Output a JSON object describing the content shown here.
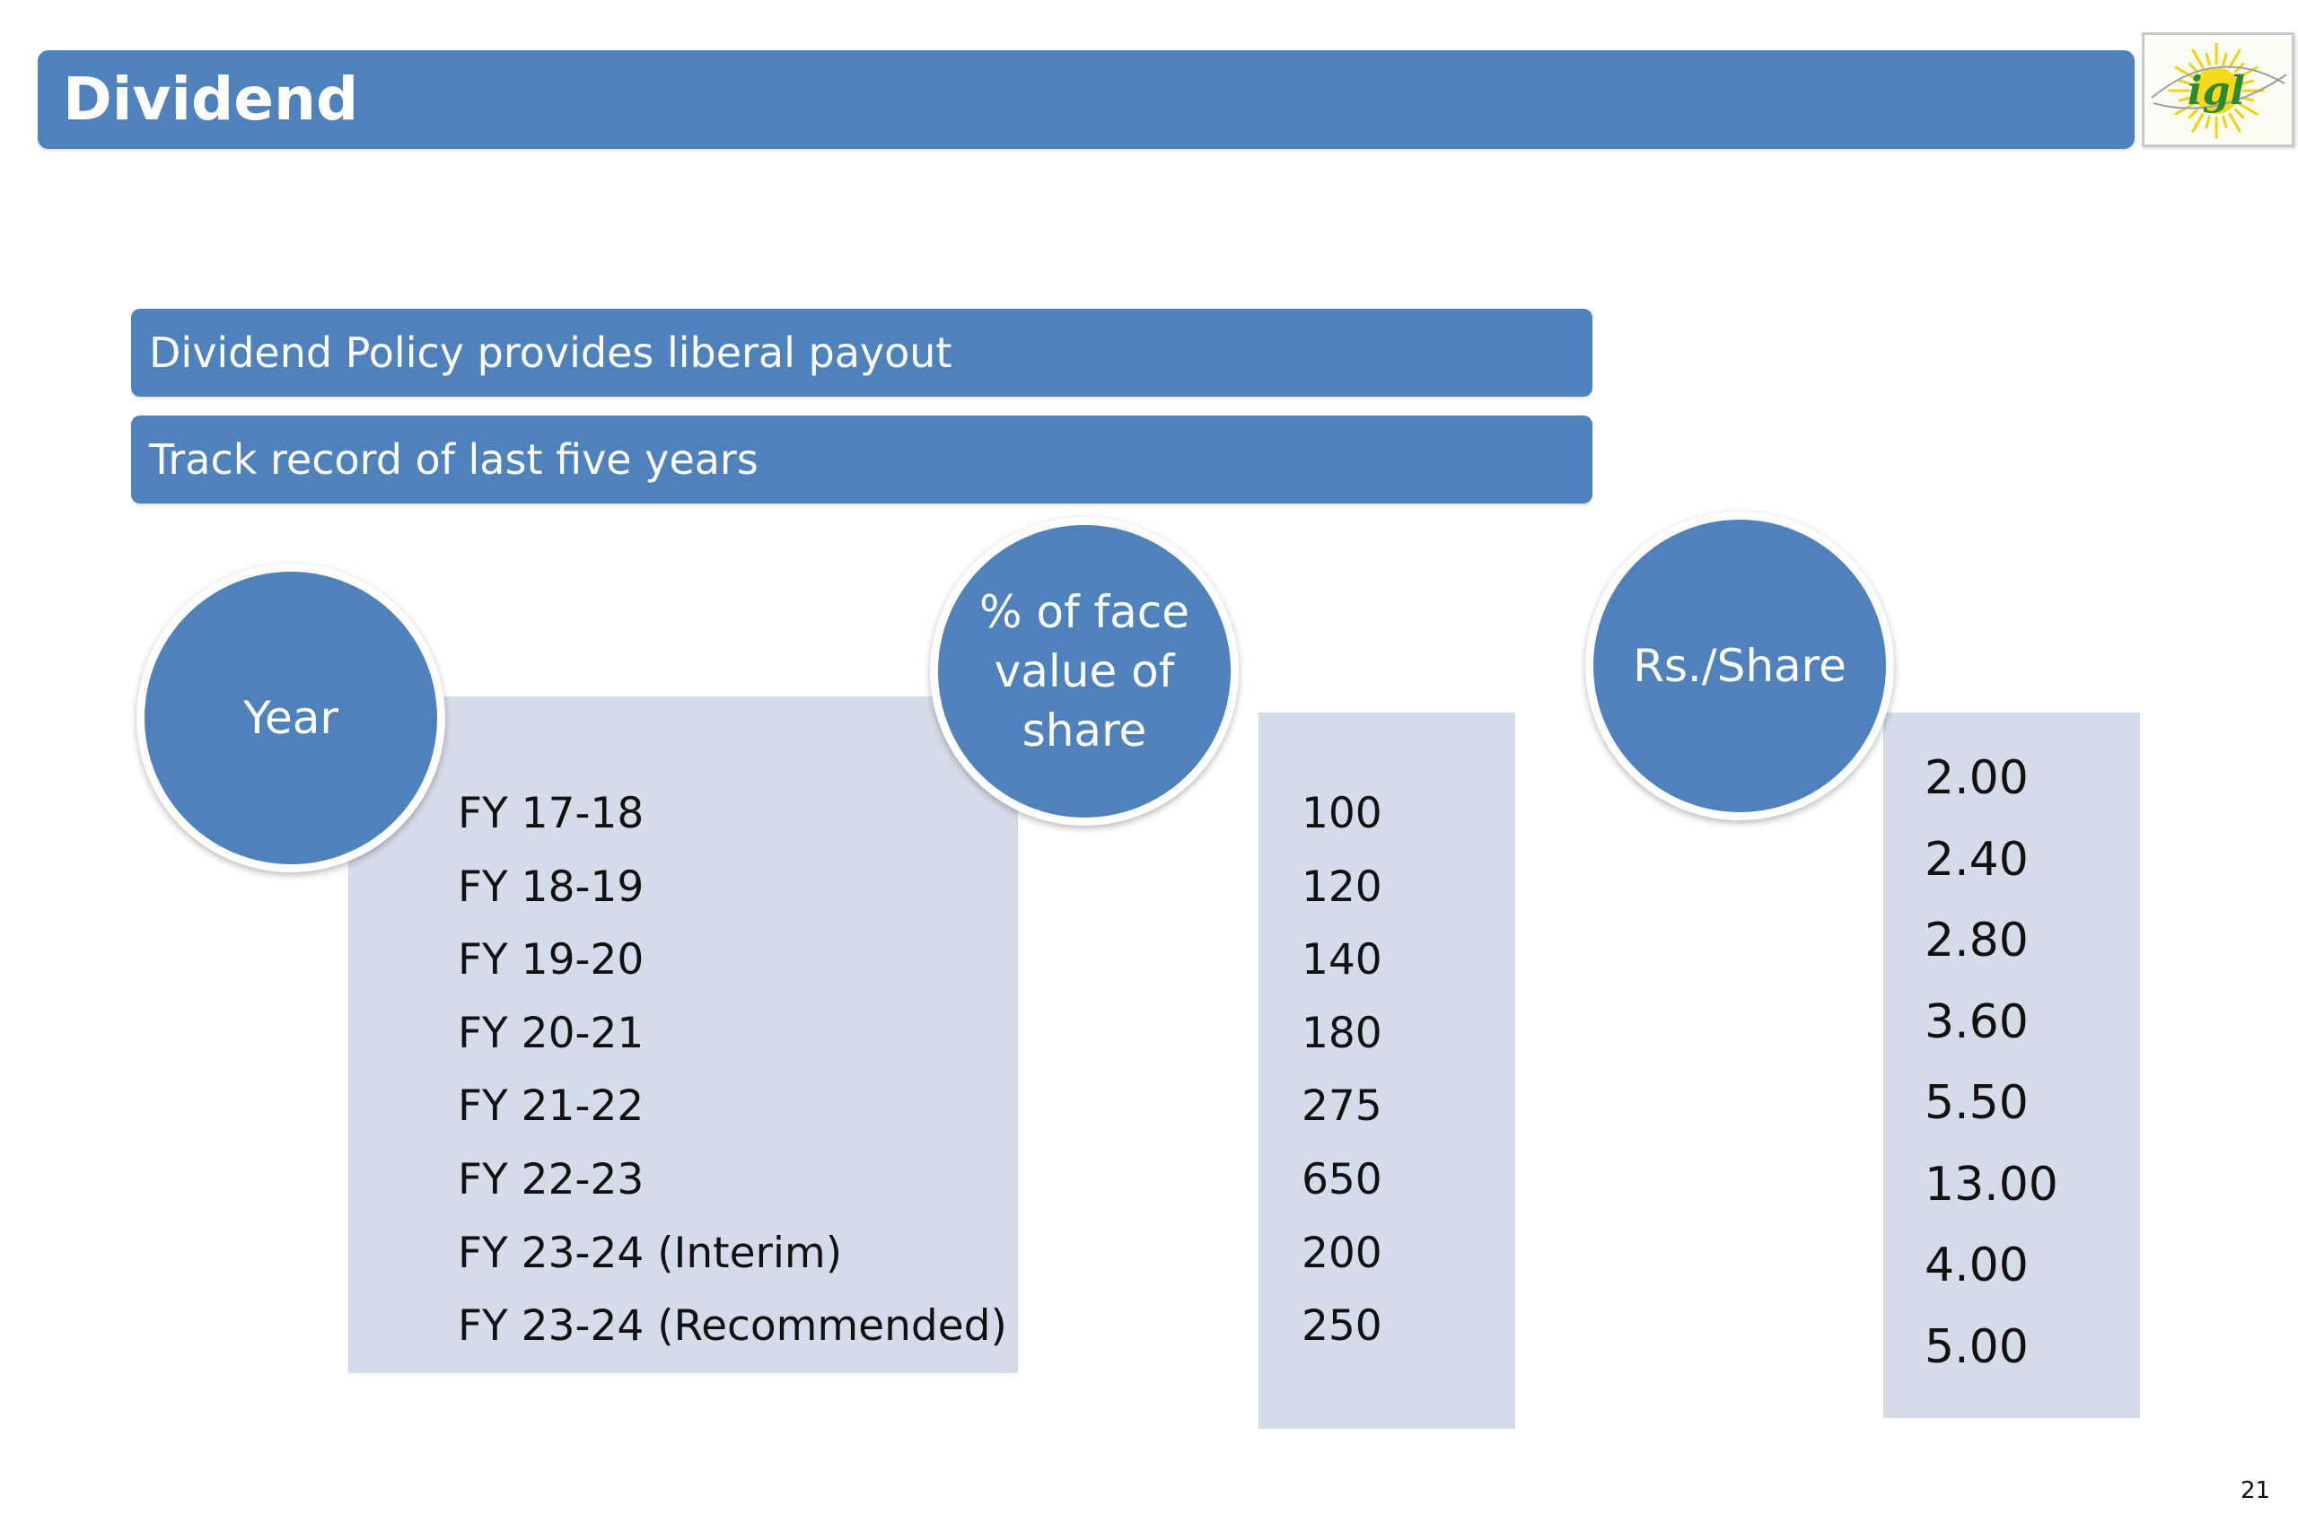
{
  "slide": {
    "title": "Dividend",
    "page_number": "21"
  },
  "logo": {
    "text": "igl",
    "icon": "sun-logo-icon",
    "colors": {
      "sun": "#f5d10a",
      "text": "#2d8a2d"
    }
  },
  "banners": [
    {
      "text": "Dividend Policy provides liberal payout"
    },
    {
      "text": "Track record of last five years"
    }
  ],
  "columns": {
    "year": {
      "header": "Year",
      "values": [
        "FY 17-18",
        "FY 18-19",
        "FY 19-20",
        "FY 20-21",
        "FY 21-22",
        "FY 22-23",
        "FY 23-24 (Interim)",
        "FY 23-24 (Recommended)"
      ]
    },
    "percent": {
      "header": "% of face\nvalue of\nshare",
      "values": [
        "100",
        "120",
        "140",
        "180",
        "275",
        "650",
        "200",
        "250"
      ]
    },
    "rs": {
      "header": "Rs./Share",
      "values": [
        "2.00",
        "2.40",
        "2.80",
        "3.60",
        "5.50",
        "13.00",
        "4.00",
        "5.00"
      ]
    }
  },
  "colors": {
    "accent": "#4f81bd",
    "panel": "#d5dce9",
    "text": "#111111"
  }
}
